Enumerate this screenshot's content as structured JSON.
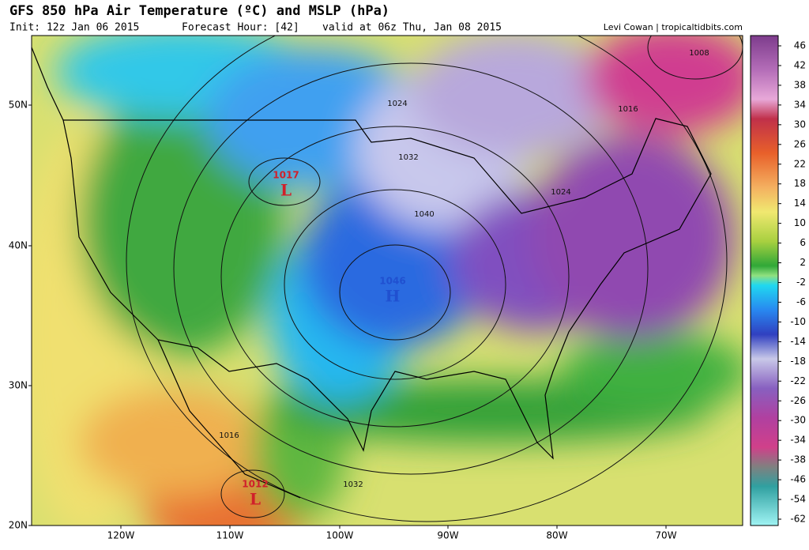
{
  "header": {
    "title": "GFS 850 hPa Air Temperature (ºC) and MSLP (hPa)",
    "init": "Init: 12z Jan 06 2015",
    "forecast_hour": "Forecast Hour: [42]",
    "valid": "valid at 06z Thu, Jan 08 2015",
    "credit": "Levi Cowan | tropicaltidbits.com"
  },
  "map": {
    "lat_labels": [
      "50N",
      "40N",
      "30N",
      "20N"
    ],
    "lon_labels": [
      "120W",
      "110W",
      "100W",
      "90W",
      "80W",
      "70W"
    ],
    "isobar_labels": [
      "1008",
      "1024",
      "1016",
      "1032",
      "1040",
      "1024",
      "1016",
      "1032"
    ],
    "centers": [
      {
        "pressure": "1017",
        "symbol": "L"
      },
      {
        "pressure": "1046",
        "symbol": "H"
      },
      {
        "pressure": "1012",
        "symbol": "L"
      }
    ]
  },
  "colorbar": {
    "labels": [
      "46",
      "42",
      "38",
      "34",
      "30",
      "26",
      "22",
      "18",
      "14",
      "10",
      "6",
      "2",
      "-2",
      "-6",
      "-10",
      "-14",
      "-18",
      "-22",
      "-26",
      "-30",
      "-34",
      "-38",
      "-46",
      "-54",
      "-62"
    ]
  }
}
